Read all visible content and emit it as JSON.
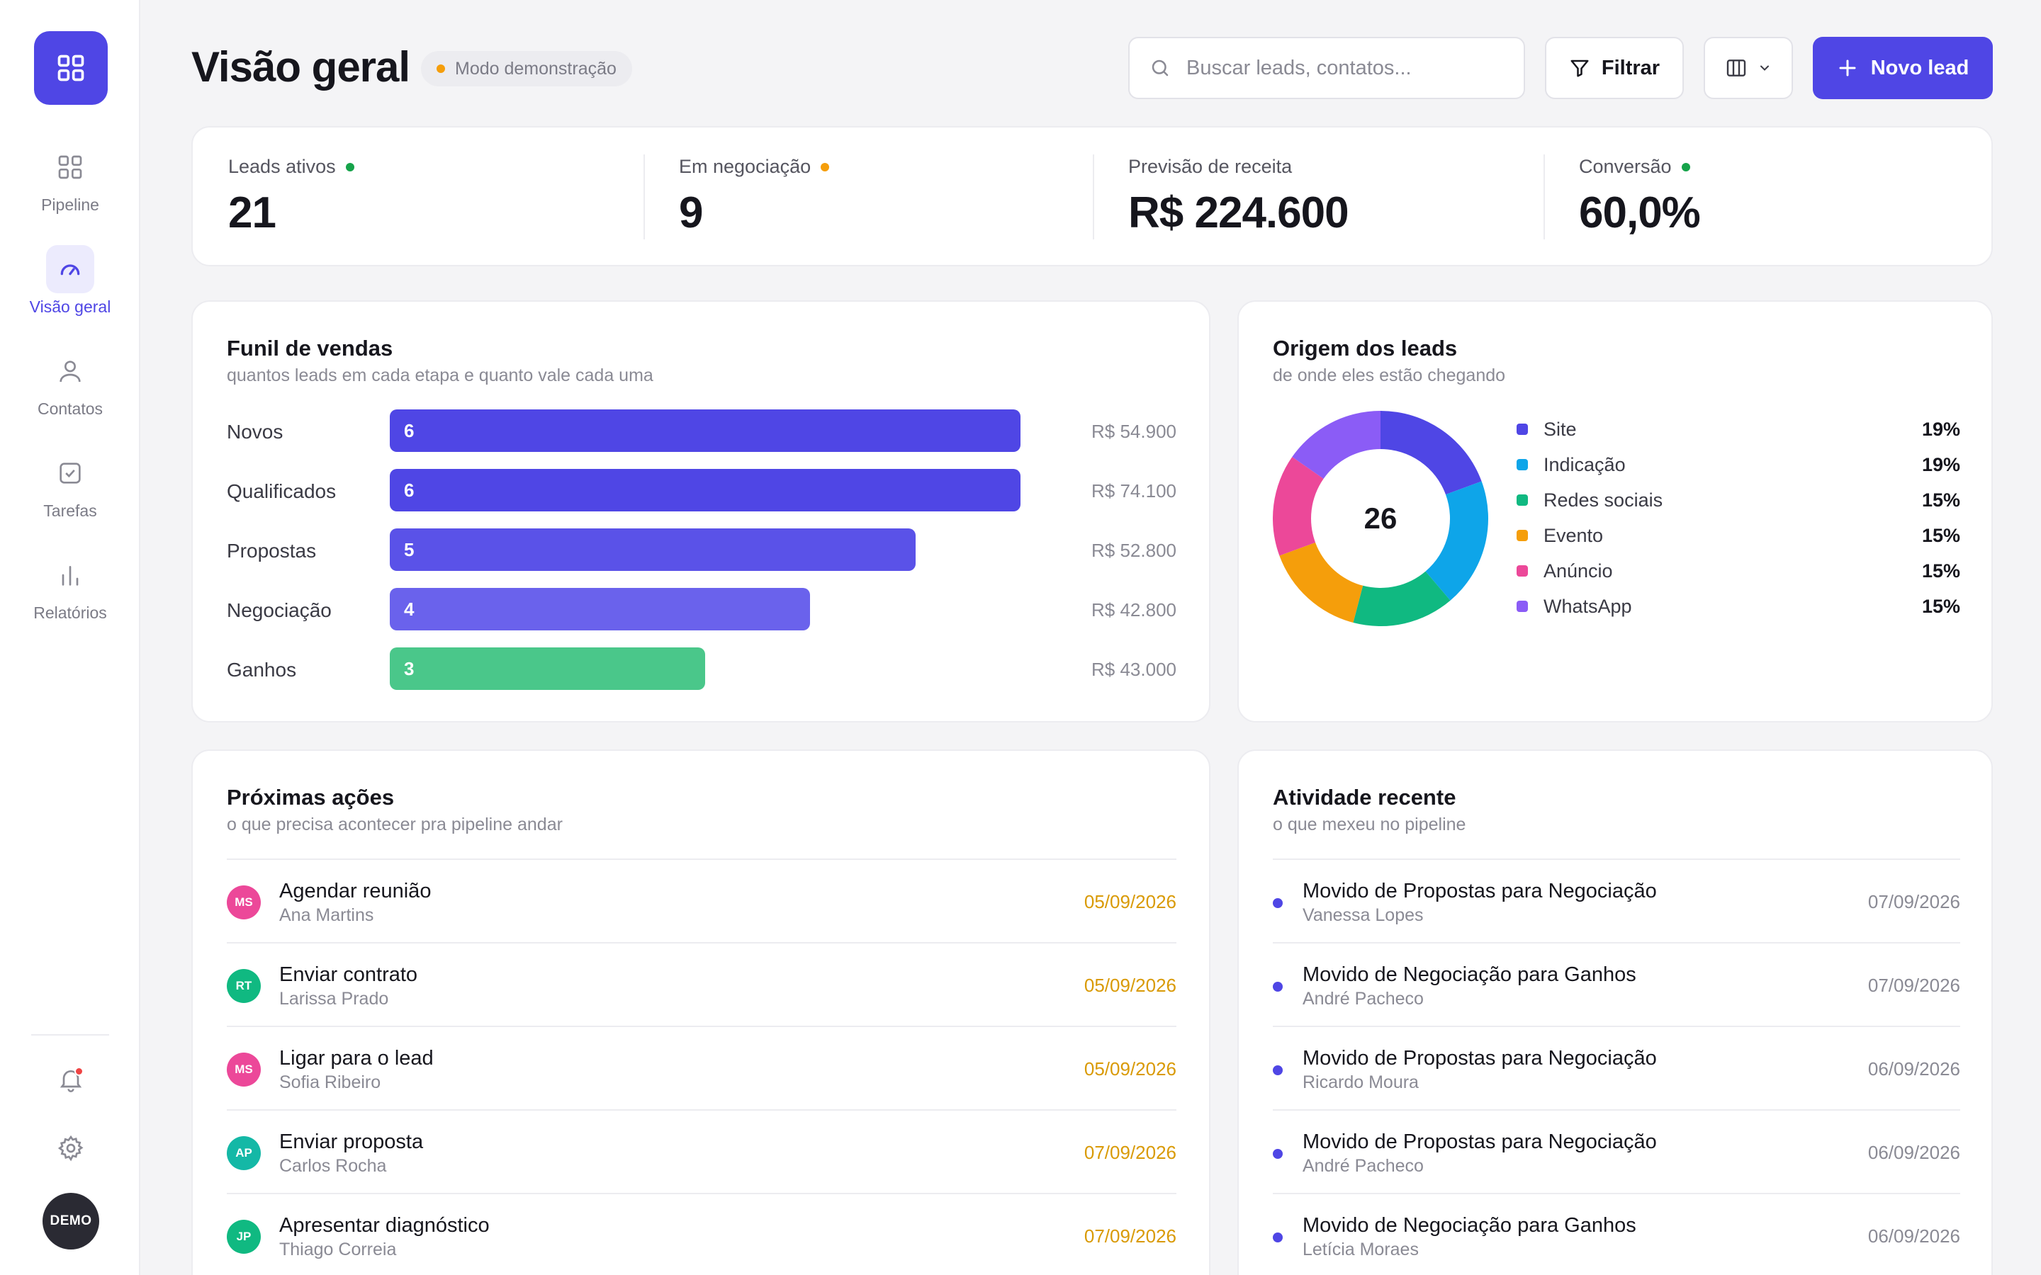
{
  "sidebar": {
    "items": [
      {
        "label": "Pipeline",
        "icon": "grid-icon"
      },
      {
        "label": "Visão geral",
        "icon": "gauge-icon",
        "active": true
      },
      {
        "label": "Contatos",
        "icon": "user-icon"
      },
      {
        "label": "Tarefas",
        "icon": "checkbox-icon"
      },
      {
        "label": "Relatórios",
        "icon": "bar-chart-icon"
      }
    ],
    "avatar_label": "DEMO"
  },
  "header": {
    "title": "Visão geral",
    "badge": "Modo demonstração",
    "search_placeholder": "Buscar leads, contatos...",
    "filter_label": "Filtrar",
    "new_label": "Novo lead"
  },
  "kpis": [
    {
      "label": "Leads ativos",
      "value": "21",
      "dot": "#16a34a"
    },
    {
      "label": "Em negociação",
      "value": "9",
      "dot": "#f59e0b"
    },
    {
      "label": "Previsão de receita",
      "value": "R$ 224.600"
    },
    {
      "label": "Conversão",
      "value": "60,0%",
      "dot": "#16a34a"
    }
  ],
  "funnel": {
    "title": "Funil de vendas",
    "subtitle": "quantos leads em cada etapa e quanto vale cada uma",
    "max": 6,
    "rows": [
      {
        "label": "Novos",
        "count": 6,
        "count_label": "6",
        "value": "R$ 54.900",
        "color": "#4f46e5"
      },
      {
        "label": "Qualificados",
        "count": 6,
        "count_label": "6",
        "value": "R$ 74.100",
        "color": "#4f46e5"
      },
      {
        "label": "Propostas",
        "count": 5,
        "count_label": "5",
        "value": "R$ 52.800",
        "color": "#5a52e8"
      },
      {
        "label": "Negociação",
        "count": 4,
        "count_label": "4",
        "value": "R$ 42.800",
        "color": "#6a62ec"
      },
      {
        "label": "Ganhos",
        "count": 3,
        "count_label": "3",
        "value": "R$ 43.000",
        "color": "#4ac78a"
      }
    ]
  },
  "origin": {
    "title": "Origem dos leads",
    "subtitle": "de onde eles estão chegando",
    "total": "26",
    "items": [
      {
        "name": "Site",
        "pct": "19%",
        "value": 19,
        "color": "#4f46e5"
      },
      {
        "name": "Indicação",
        "pct": "19%",
        "value": 19,
        "color": "#0ea5e9"
      },
      {
        "name": "Redes sociais",
        "pct": "15%",
        "value": 15,
        "color": "#10b981"
      },
      {
        "name": "Evento",
        "pct": "15%",
        "value": 15,
        "color": "#f59e0b"
      },
      {
        "name": "Anúncio",
        "pct": "15%",
        "value": 15,
        "color": "#ec4899"
      },
      {
        "name": "WhatsApp",
        "pct": "15%",
        "value": 15,
        "color": "#8b5cf6"
      }
    ]
  },
  "actions": {
    "title": "Próximas ações",
    "subtitle": "o que precisa acontecer pra pipeline andar",
    "date_color": "#d99a06",
    "items": [
      {
        "initials": "MS",
        "color": "#ec4899",
        "title": "Agendar reunião",
        "person": "Ana Martins",
        "date": "05/09/2026"
      },
      {
        "initials": "RT",
        "color": "#10b981",
        "title": "Enviar contrato",
        "person": "Larissa Prado",
        "date": "05/09/2026"
      },
      {
        "initials": "MS",
        "color": "#ec4899",
        "title": "Ligar para o lead",
        "person": "Sofia Ribeiro",
        "date": "05/09/2026"
      },
      {
        "initials": "AP",
        "color": "#14b8a6",
        "title": "Enviar proposta",
        "person": "Carlos Rocha",
        "date": "07/09/2026"
      },
      {
        "initials": "JP",
        "color": "#10b981",
        "title": "Apresentar diagnóstico",
        "person": "Thiago Correia",
        "date": "07/09/2026"
      }
    ]
  },
  "activity": {
    "title": "Atividade recente",
    "subtitle": "o que mexeu no pipeline",
    "items": [
      {
        "title": "Movido de Propostas para Negociação",
        "person": "Vanessa Lopes",
        "date": "07/09/2026"
      },
      {
        "title": "Movido de Negociação para Ganhos",
        "person": "André Pacheco",
        "date": "07/09/2026"
      },
      {
        "title": "Movido de Propostas para Negociação",
        "person": "Ricardo Moura",
        "date": "06/09/2026"
      },
      {
        "title": "Movido de Propostas para Negociação",
        "person": "André Pacheco",
        "date": "06/09/2026"
      },
      {
        "title": "Movido de Negociação para Ganhos",
        "person": "Letícia Moraes",
        "date": "06/09/2026"
      }
    ]
  }
}
